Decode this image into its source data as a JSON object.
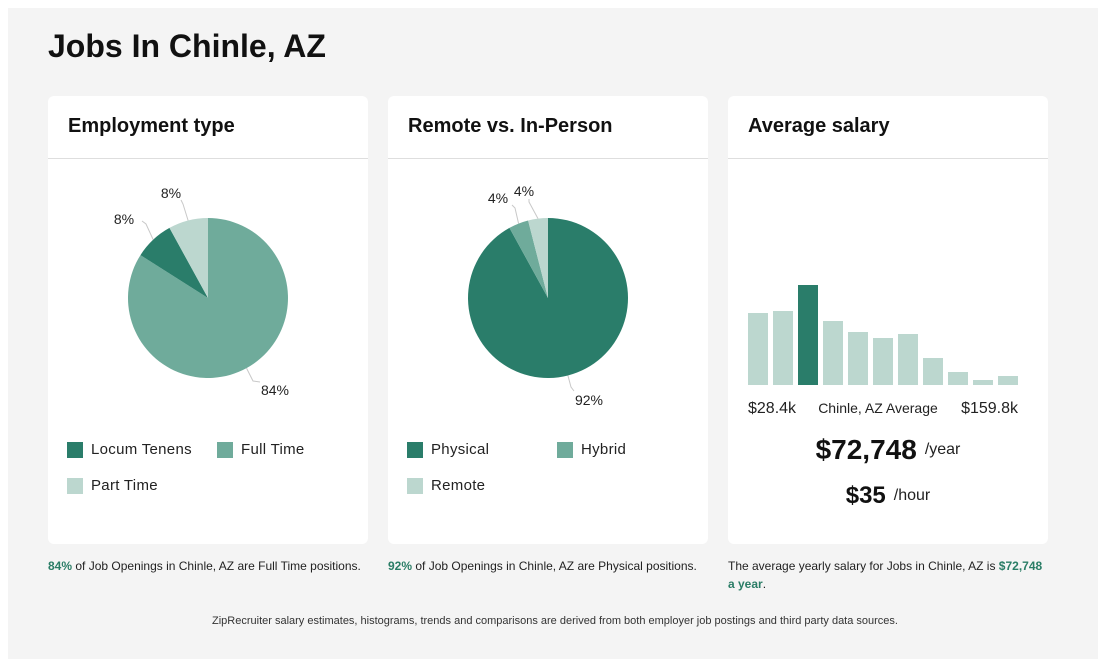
{
  "page": {
    "title": "Jobs In Chinle, AZ"
  },
  "colors": {
    "dark": "#2a7d6a",
    "mid": "#6fab9b",
    "light": "#bcd7cf",
    "accent": "#2a7d66"
  },
  "cards": {
    "employment": {
      "title": "Employment type"
    },
    "remote": {
      "title": "Remote vs. In-Person"
    },
    "salary": {
      "title": "Average salary"
    }
  },
  "chart_data": [
    {
      "type": "pie",
      "title": "Employment type",
      "slices": [
        {
          "label": "Full Time",
          "value": 84,
          "label_text": "84%",
          "color": "#6fab9b"
        },
        {
          "label": "Locum Tenens",
          "value": 8,
          "label_text": "8%",
          "color": "#2a7d6a"
        },
        {
          "label": "Part Time",
          "value": 8,
          "label_text": "8%",
          "color": "#bcd7cf"
        }
      ]
    },
    {
      "type": "pie",
      "title": "Remote vs. In-Person",
      "slices": [
        {
          "label": "Physical",
          "value": 92,
          "label_text": "92%",
          "color": "#2a7d6a"
        },
        {
          "label": "Hybrid",
          "value": 4,
          "label_text": "4%",
          "color": "#6fab9b"
        },
        {
          "label": "Remote",
          "value": 4,
          "label_text": "4%",
          "color": "#bcd7cf"
        }
      ]
    },
    {
      "type": "bar",
      "title": "Average salary",
      "values": [
        72,
        74,
        100,
        64,
        53,
        47,
        51,
        27,
        13,
        5,
        9
      ],
      "highlight_index": 2,
      "ylim": [
        0,
        100
      ],
      "x_min_label": "$28.4k",
      "x_max_label": "$159.8k",
      "marker_label": "Chinle, AZ Average"
    }
  ],
  "legends": {
    "employment": [
      {
        "label": "Locum Tenens",
        "color": "#2a7d6a"
      },
      {
        "label": "Full Time",
        "color": "#6fab9b"
      },
      {
        "label": "Part Time",
        "color": "#bcd7cf"
      }
    ],
    "remote": [
      {
        "label": "Physical",
        "color": "#2a7d6a"
      },
      {
        "label": "Hybrid",
        "color": "#6fab9b"
      },
      {
        "label": "Remote",
        "color": "#bcd7cf"
      }
    ]
  },
  "salary": {
    "yearly": "$72,748",
    "yearly_unit": "/year",
    "hourly": "$35",
    "hourly_unit": "/hour"
  },
  "captions": {
    "employment": {
      "highlight": "84%",
      "text": " of Job Openings in Chinle, AZ are Full Time positions."
    },
    "remote": {
      "highlight": "92%",
      "text": " of Job Openings in Chinle, AZ are Physical positions."
    },
    "salary": {
      "text": "The average yearly salary for Jobs in Chinle, AZ is ",
      "highlight": "$72,748 a year",
      "end": "."
    }
  },
  "footer": "ZipRecruiter salary estimates, histograms, trends and comparisons are derived from both employer job postings and third party data sources."
}
